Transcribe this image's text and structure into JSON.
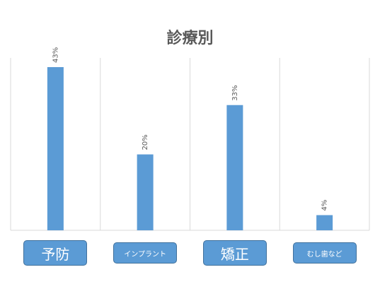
{
  "chart_data": {
    "type": "bar",
    "title": "診療別",
    "categories": [
      "予防",
      "インプラント",
      "矯正",
      "むし歯など"
    ],
    "values": [
      43,
      20,
      33,
      4
    ],
    "data_labels": [
      "43%",
      "20%",
      "33%",
      "4%"
    ],
    "ylim": [
      0,
      43
    ],
    "xlabel": "",
    "ylabel": "",
    "grid": "vertical",
    "bar_color": "#5b9bd5",
    "category_box_color": "#5b9bd5",
    "category_box_border": "#41719c",
    "grid_color": "#d9d9d9",
    "label_color": "#595959"
  }
}
